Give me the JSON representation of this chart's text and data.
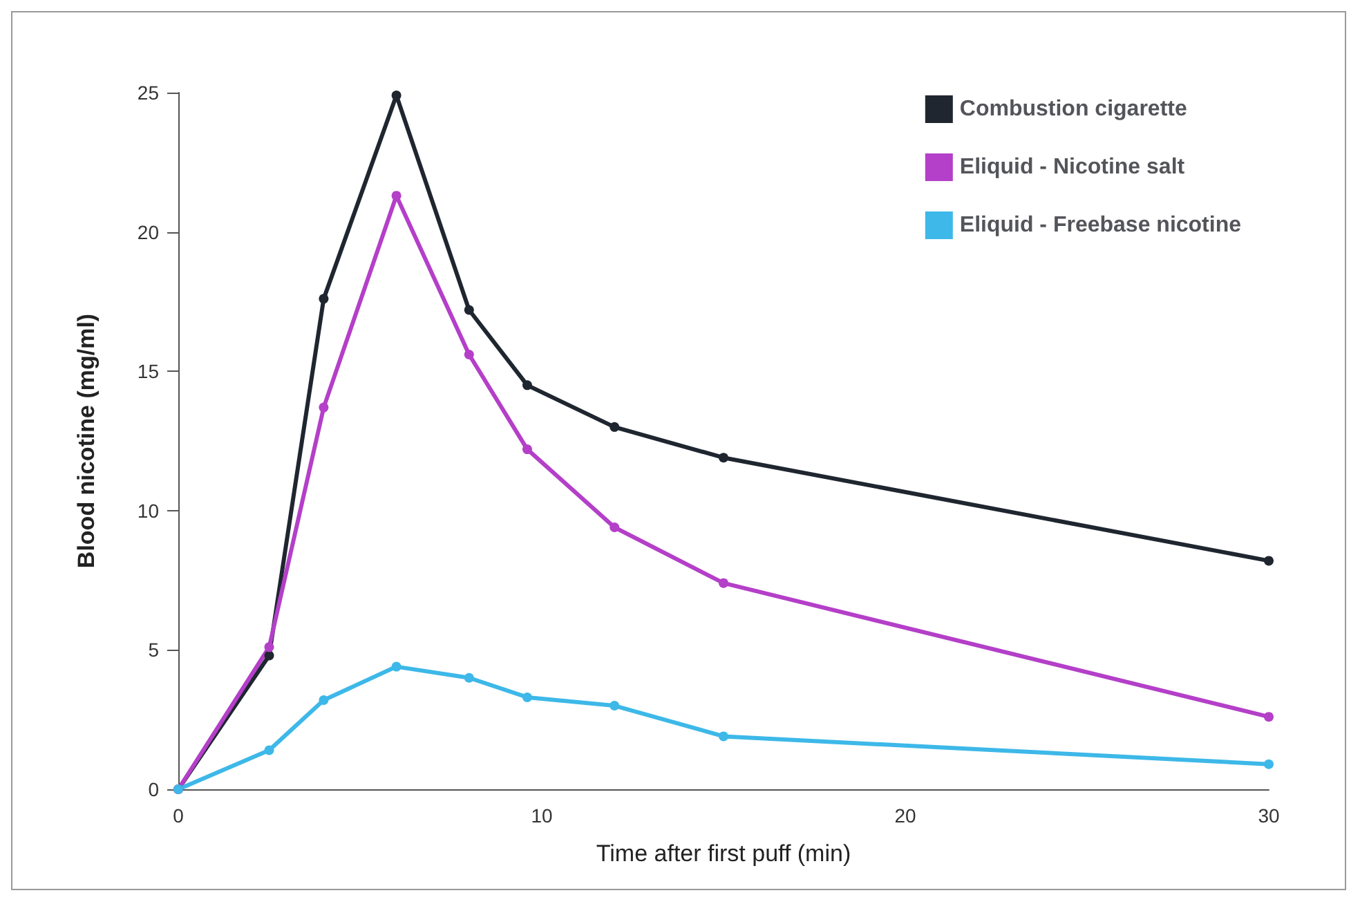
{
  "chart_data": {
    "type": "line",
    "xlabel": "Time after first puff (min)",
    "ylabel": "Blood nicotine (mg/ml)",
    "series": [
      {
        "name": "Combustion cigarette",
        "color": "#1f2630",
        "x": [
          0,
          2.5,
          4,
          6,
          8,
          9.6,
          12,
          15,
          30
        ],
        "values": [
          0,
          4.8,
          17.6,
          24.9,
          17.2,
          14.5,
          13,
          11.9,
          8.2
        ]
      },
      {
        "name": "Eliquid - Nicotine salt",
        "color": "#b43fc8",
        "x": [
          0,
          2.5,
          4,
          6,
          8,
          9.6,
          12,
          15,
          30
        ],
        "values": [
          0,
          5.1,
          13.7,
          21.3,
          15.6,
          12.2,
          9.4,
          7.4,
          2.6
        ]
      },
      {
        "name": "Eliquid - Freebase nicotine",
        "color": "#3db8e8",
        "x": [
          0,
          2.5,
          4,
          6,
          8,
          9.6,
          12,
          15,
          30
        ],
        "values": [
          0,
          1.4,
          3.2,
          4.4,
          4,
          3.3,
          3,
          1.9,
          0.9
        ]
      }
    ],
    "xlim": [
      0,
      30
    ],
    "xticks": [
      0,
      10,
      20,
      30
    ],
    "ylim": [
      0,
      25
    ],
    "yticks": [
      0,
      5,
      10,
      15,
      20,
      25
    ],
    "grid": false,
    "legend": "top right",
    "marker": "circle",
    "line_style": "solid"
  }
}
